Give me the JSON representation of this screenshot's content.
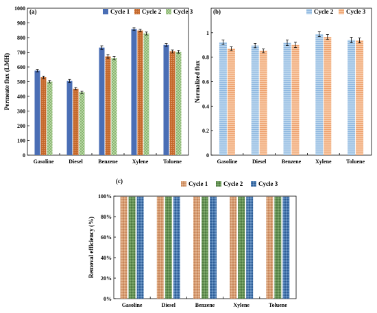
{
  "chart_data": [
    {
      "type": "bar",
      "panel_label": "(a)",
      "categories": [
        "Gasoline",
        "Diesel",
        "Benzene",
        "Xylene",
        "Toluene"
      ],
      "ylabel": "Permeate flux (LMH)",
      "xlabel": "",
      "ylim": [
        0,
        1000
      ],
      "yticks": [
        "0",
        "100",
        "200",
        "300",
        "400",
        "500",
        "600",
        "700",
        "800",
        "900",
        "1000"
      ],
      "legend_position": "top-right",
      "grid": false,
      "series": [
        {
          "name": "Cycle 1",
          "values": [
            575,
            505,
            732,
            858,
            750
          ],
          "errors": [
            8,
            10,
            12,
            8,
            10
          ],
          "color": "#4a6eb5",
          "pattern": "solid"
        },
        {
          "name": "Cycle 2",
          "values": [
            530,
            452,
            672,
            848,
            706
          ],
          "errors": [
            8,
            8,
            12,
            8,
            10
          ],
          "color": "#c4672a",
          "pattern": "dots"
        },
        {
          "name": "Cycle 3",
          "values": [
            500,
            428,
            660,
            828,
            703
          ],
          "errors": [
            8,
            8,
            12,
            10,
            10
          ],
          "color": "#a9cf8e",
          "pattern": "checker"
        }
      ]
    },
    {
      "type": "bar",
      "panel_label": "(b)",
      "categories": [
        "Gasoline",
        "Diesel",
        "Benzene",
        "Xylene",
        "Toluene"
      ],
      "ylabel": "Normalized flux",
      "xlabel": "",
      "ylim": [
        0,
        1.2
      ],
      "yticks": [
        "0",
        "0.2",
        "0.4",
        "0.6",
        "0.8",
        "1"
      ],
      "legend_position": "top-right",
      "grid": false,
      "series": [
        {
          "name": "Cycle 2",
          "values": [
            0.922,
            0.895,
            0.918,
            0.988,
            0.941
          ],
          "errors": [
            0.018,
            0.018,
            0.022,
            0.02,
            0.022
          ],
          "color": "#9dc3e6",
          "pattern": "stripes"
        },
        {
          "name": "Cycle 3",
          "values": [
            0.87,
            0.852,
            0.9,
            0.965,
            0.937
          ],
          "errors": [
            0.015,
            0.015,
            0.022,
            0.02,
            0.02
          ],
          "color": "#f4b183",
          "pattern": "stripes"
        }
      ]
    },
    {
      "type": "bar",
      "panel_label": "(c)",
      "categories": [
        "Gasoline",
        "Diesel",
        "Benzene",
        "Xylene",
        "Toluene"
      ],
      "ylabel": "Removal efficiency (%)",
      "xlabel": "",
      "ylim": [
        0,
        100
      ],
      "yticks": [
        "0%",
        "20%",
        "40%",
        "60%",
        "80%",
        "100%"
      ],
      "legend_position": "top",
      "grid": false,
      "series": [
        {
          "name": "Cycle 1",
          "values": [
            99.5,
            99.5,
            99.5,
            99.5,
            99.5
          ],
          "color": "#c9875a",
          "pattern": "weave"
        },
        {
          "name": "Cycle 2",
          "values": [
            99.5,
            99.5,
            99.5,
            99.5,
            99.5
          ],
          "color": "#5a8a4a",
          "pattern": "weave"
        },
        {
          "name": "Cycle 3",
          "values": [
            99.5,
            99.5,
            99.5,
            99.5,
            99.5
          ],
          "color": "#3d6ea8",
          "pattern": "weave"
        }
      ]
    }
  ]
}
